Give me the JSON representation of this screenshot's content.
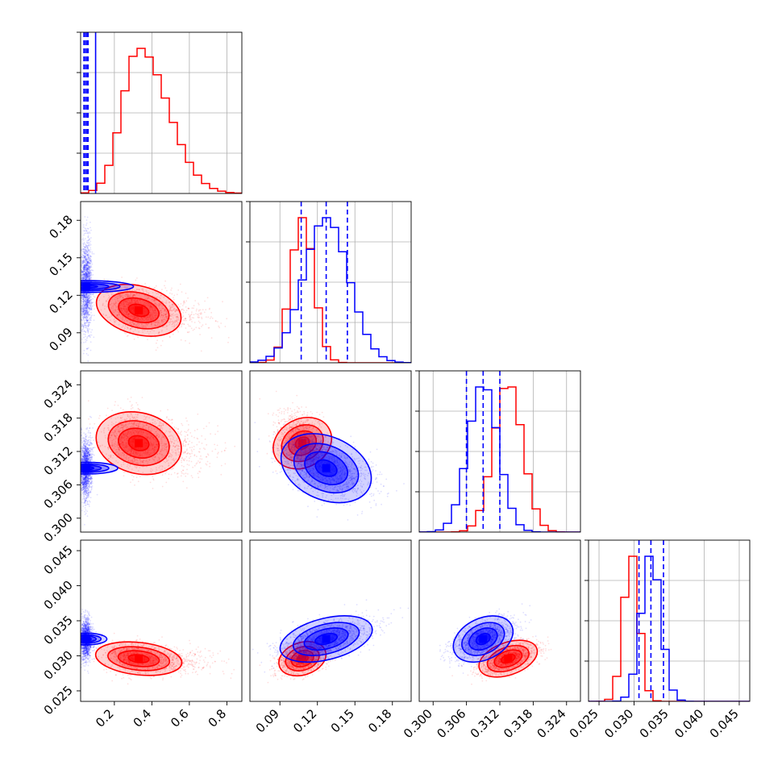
{
  "chart_data": {
    "type": "corner",
    "parameters": [
      {
        "range": [
          0.02,
          0.88
        ],
        "ticks": [
          "0.2",
          "0.4",
          "0.6",
          "0.8"
        ],
        "tick_values": [
          0.2,
          0.4,
          0.6,
          0.8
        ]
      },
      {
        "range": [
          0.066,
          0.195
        ],
        "ticks": [
          "0.09",
          "0.12",
          "0.15",
          "0.18"
        ],
        "tick_values": [
          0.09,
          0.12,
          0.15,
          0.18
        ]
      },
      {
        "range": [
          0.2975,
          0.3265
        ],
        "ticks": [
          "0.300",
          "0.306",
          "0.312",
          "0.318",
          "0.324"
        ],
        "tick_values": [
          0.3,
          0.306,
          0.312,
          0.318,
          0.324
        ]
      },
      {
        "range": [
          0.0235,
          0.0465
        ],
        "ticks": [
          "0.025",
          "0.030",
          "0.035",
          "0.040",
          "0.045"
        ],
        "tick_values": [
          0.025,
          0.03,
          0.035,
          0.04,
          0.045
        ]
      }
    ],
    "grid": true,
    "series": [
      {
        "color": "#ff0000",
        "means": [
          0.33,
          0.108,
          0.3135,
          0.0296
        ],
        "sigmas": [
          0.11,
          0.0092,
          0.0026,
          0.0011
        ],
        "correlations": {
          "0-1": -0.35,
          "0-2": -0.2,
          "0-3": -0.25,
          "1-2": -0.35,
          "1-3": 0.3,
          "2-3": 0.55
        },
        "quantile_lines": []
      },
      {
        "color": "#0000ff",
        "means": [
          0.05,
          0.127,
          0.309,
          0.0324
        ],
        "sigmas": [
          0.015,
          0.018,
          0.0027,
          0.0014
        ],
        "correlations": {
          "0-1": 0.0,
          "0-2": 0.0,
          "0-3": 0.0,
          "1-2": -0.45,
          "1-3": 0.5,
          "2-3": 0.55
        },
        "quantile_lines": [
          {
            "param": 0,
            "values": [
              0.037,
              0.045,
              0.053,
              0.06,
              0.1
            ]
          },
          {
            "param": 1,
            "values": [
              0.107,
              0.127,
              0.144
            ]
          },
          {
            "param": 2,
            "values": [
              0.306,
              0.309,
              0.312
            ]
          },
          {
            "param": 3,
            "values": [
              0.0307,
              0.0324,
              0.0342
            ]
          }
        ]
      }
    ]
  }
}
